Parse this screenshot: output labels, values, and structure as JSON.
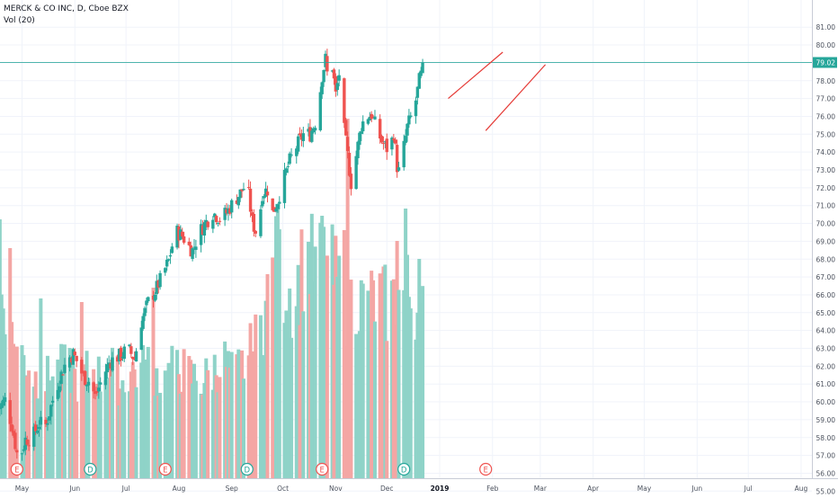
{
  "legend": {
    "title": "MERCK & CO INC, D, Cboe BZX",
    "volume_label": "Vol (20)"
  },
  "colors": {
    "up": "#26a69a",
    "down": "#ef5350",
    "volume_up": "#8fd3c8",
    "volume_down": "#f4a6a4",
    "grid": "#f0f3fa",
    "price_line": "#26a69a",
    "trendline": "#e53935",
    "axis_text": "#4c525e",
    "event_earnings": "#ef5350",
    "event_dividend": "#26a69a"
  },
  "chart_data": {
    "type": "candlestick",
    "title": "MERCK & CO INC, D, Cboe BZX",
    "yaxis": {
      "side": "right",
      "ylim": [
        55,
        81.4
      ],
      "ticks": [
        "81.00",
        "80.00",
        "79.00",
        "78.00",
        "77.00",
        "76.00",
        "75.00",
        "74.00",
        "73.00",
        "72.00",
        "71.00",
        "70.00",
        "69.00",
        "68.00",
        "67.00",
        "66.00",
        "65.00",
        "64.00",
        "63.00",
        "62.00",
        "61.00",
        "60.00",
        "59.00",
        "58.00",
        "57.00",
        "56.00",
        "55.00"
      ]
    },
    "xaxis": {
      "ticks": [
        {
          "label": "May",
          "day": 0
        },
        {
          "label": "Jun",
          "day": 31
        },
        {
          "label": "Jul",
          "day": 61
        },
        {
          "label": "Aug",
          "day": 92
        },
        {
          "label": "Sep",
          "day": 123
        },
        {
          "label": "Oct",
          "day": 153
        },
        {
          "label": "Nov",
          "day": 184
        },
        {
          "label": "Dec",
          "day": 214
        },
        {
          "label": "2019",
          "day": 245,
          "bold": true
        },
        {
          "label": "Feb",
          "day": 276
        },
        {
          "label": "Mar",
          "day": 304
        },
        {
          "label": "Apr",
          "day": 335
        },
        {
          "label": "May",
          "day": 365
        },
        {
          "label": "Jun",
          "day": 396
        },
        {
          "label": "Jul",
          "day": 426
        },
        {
          "label": "Aug",
          "day": 457
        }
      ],
      "xlim_days": [
        -14,
        472
      ]
    },
    "last_price": 79.02,
    "price_anchors": [
      [
        -14,
        59.6
      ],
      [
        -10,
        60.1
      ],
      [
        -6,
        58.7
      ],
      [
        -2,
        56.6
      ],
      [
        2,
        57.9
      ],
      [
        6,
        58.0
      ],
      [
        10,
        58.8
      ],
      [
        14,
        58.7
      ],
      [
        18,
        60.1
      ],
      [
        22,
        61.3
      ],
      [
        26,
        62.3
      ],
      [
        30,
        62.7
      ],
      [
        33,
        62.1
      ],
      [
        36,
        61.4
      ],
      [
        40,
        61.1
      ],
      [
        43,
        60.3
      ],
      [
        47,
        61.3
      ],
      [
        51,
        62.2
      ],
      [
        55,
        62.5
      ],
      [
        58,
        62.6
      ],
      [
        62,
        63.0
      ],
      [
        66,
        62.4
      ],
      [
        70,
        64.5
      ],
      [
        74,
        65.6
      ],
      [
        78,
        66.2
      ],
      [
        82,
        67.0
      ],
      [
        86,
        67.9
      ],
      [
        90,
        69.6
      ],
      [
        94,
        69.3
      ],
      [
        98,
        68.7
      ],
      [
        100,
        68.5
      ],
      [
        104,
        69.5
      ],
      [
        108,
        70.1
      ],
      [
        112,
        70.6
      ],
      [
        116,
        70.3
      ],
      [
        120,
        70.6
      ],
      [
        124,
        71.2
      ],
      [
        128,
        71.7
      ],
      [
        132,
        72.3
      ],
      [
        135,
        70.1
      ],
      [
        138,
        69.3
      ],
      [
        141,
        71.7
      ],
      [
        144,
        71.9
      ],
      [
        147,
        70.6
      ],
      [
        150,
        71.3
      ],
      [
        153,
        72.3
      ],
      [
        157,
        73.5
      ],
      [
        161,
        74.3
      ],
      [
        165,
        75.0
      ],
      [
        169,
        75.0
      ],
      [
        173,
        75.9
      ],
      [
        176,
        78.3
      ],
      [
        178,
        79.2
      ],
      [
        180,
        77.6
      ],
      [
        182,
        78.8
      ],
      [
        184,
        77.2
      ],
      [
        186,
        78.4
      ],
      [
        188,
        75.9
      ],
      [
        191,
        73.8
      ],
      [
        194,
        71.5
      ],
      [
        196,
        73.8
      ],
      [
        199,
        75.5
      ],
      [
        202,
        76.0
      ],
      [
        205,
        76.1
      ],
      [
        208,
        75.3
      ],
      [
        211,
        74.6
      ],
      [
        214,
        74.2
      ],
      [
        216,
        74.2
      ],
      [
        218,
        75.1
      ],
      [
        220,
        73.2
      ],
      [
        222,
        72.6
      ],
      [
        224,
        74.3
      ],
      [
        226,
        75.4
      ],
      [
        229,
        76.2
      ],
      [
        231,
        76.9
      ],
      [
        233,
        78.0
      ],
      [
        235,
        78.6
      ],
      [
        237,
        79.1
      ]
    ],
    "volume_anchors": [
      [
        -14,
        0.55
      ],
      [
        -8,
        0.4
      ],
      [
        -2,
        0.35
      ],
      [
        4,
        0.32
      ],
      [
        10,
        0.26
      ],
      [
        16,
        0.28
      ],
      [
        22,
        0.3
      ],
      [
        28,
        0.3
      ],
      [
        34,
        0.26
      ],
      [
        40,
        0.31
      ],
      [
        46,
        0.28
      ],
      [
        52,
        0.31
      ],
      [
        58,
        0.26
      ],
      [
        64,
        0.3
      ],
      [
        70,
        0.3
      ],
      [
        76,
        0.32
      ],
      [
        82,
        0.26
      ],
      [
        88,
        0.3
      ],
      [
        94,
        0.3
      ],
      [
        100,
        0.28
      ],
      [
        106,
        0.27
      ],
      [
        112,
        0.3
      ],
      [
        118,
        0.33
      ],
      [
        124,
        0.28
      ],
      [
        130,
        0.32
      ],
      [
        136,
        0.36
      ],
      [
        142,
        0.45
      ],
      [
        148,
        0.6
      ],
      [
        154,
        0.55
      ],
      [
        160,
        0.5
      ],
      [
        166,
        0.62
      ],
      [
        172,
        0.58
      ],
      [
        178,
        0.6
      ],
      [
        184,
        0.55
      ],
      [
        190,
        0.48
      ],
      [
        196,
        0.5
      ],
      [
        202,
        0.47
      ],
      [
        208,
        0.5
      ],
      [
        214,
        0.48
      ],
      [
        220,
        0.5
      ],
      [
        226,
        0.52
      ],
      [
        232,
        0.48
      ],
      [
        237,
        0.45
      ]
    ],
    "volume_spikes": [
      [
        -13,
        0.72
      ],
      [
        -7,
        0.64
      ],
      [
        11,
        0.5
      ],
      [
        35,
        0.49
      ],
      [
        77,
        0.53
      ],
      [
        150,
        0.76
      ],
      [
        153,
        0.69
      ],
      [
        176,
        0.73
      ],
      [
        189,
        0.69
      ],
      [
        191,
        1.0
      ],
      [
        220,
        0.66
      ],
      [
        225,
        0.75
      ],
      [
        233,
        0.61
      ]
    ],
    "events": [
      {
        "letter": "E",
        "kind": "earnings",
        "day": -3
      },
      {
        "letter": "D",
        "kind": "dividend",
        "day": 40
      },
      {
        "letter": "E",
        "kind": "earnings",
        "day": 84
      },
      {
        "letter": "D",
        "kind": "dividend",
        "day": 132
      },
      {
        "letter": "E",
        "kind": "earnings",
        "day": 176
      },
      {
        "letter": "D",
        "kind": "dividend",
        "day": 224
      },
      {
        "letter": "E",
        "kind": "earnings",
        "day": 272
      }
    ],
    "trendlines": [
      {
        "from": {
          "day": 250,
          "price": 77.0
        },
        "to": {
          "day": 282,
          "price": 79.6
        }
      },
      {
        "from": {
          "day": 272,
          "price": 75.2
        },
        "to": {
          "day": 307,
          "price": 78.9
        }
      }
    ],
    "grid": true
  }
}
